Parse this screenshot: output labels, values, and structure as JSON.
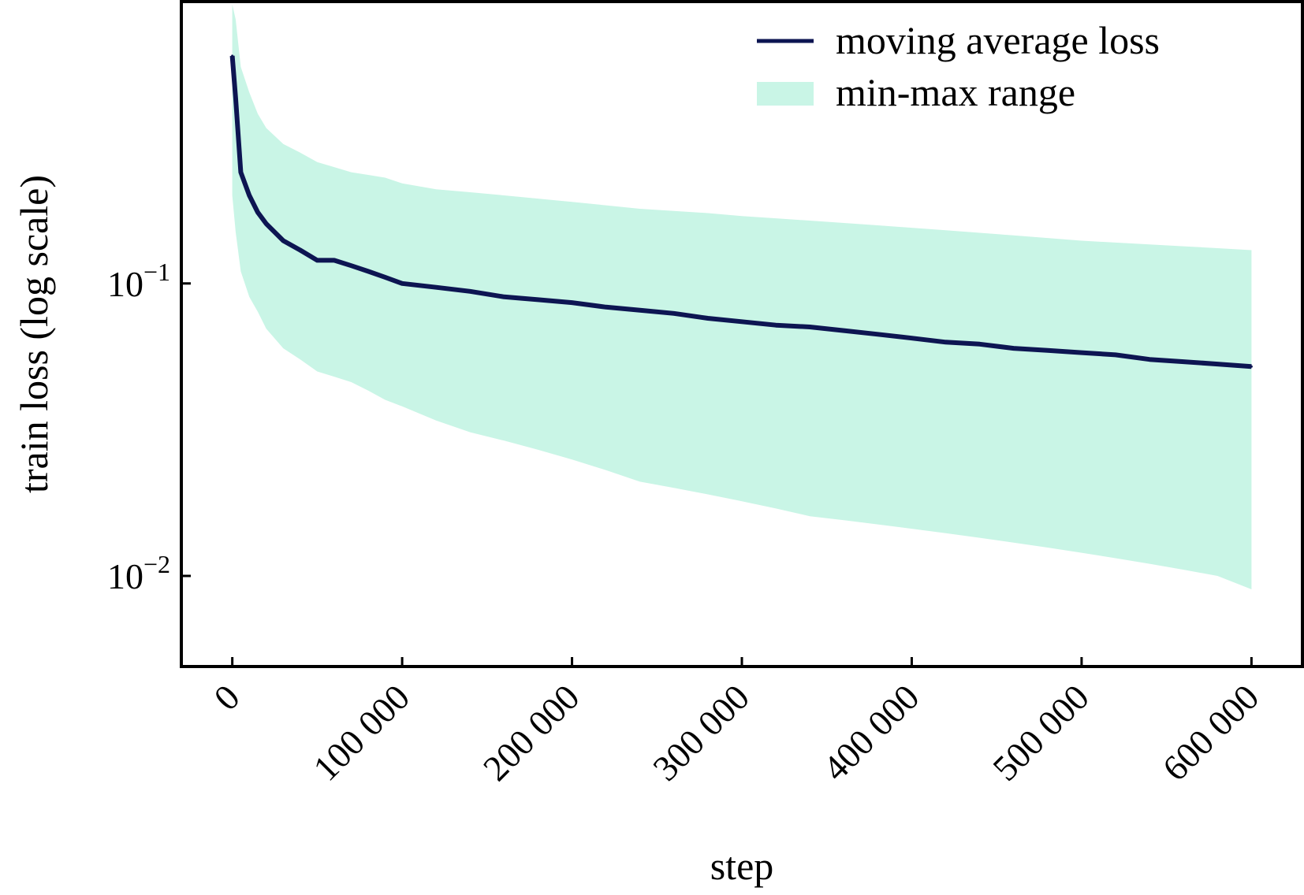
{
  "chart_data": {
    "type": "line",
    "title": "",
    "xlabel": "step",
    "ylabel": "train loss (log scale)",
    "y_scale": "log",
    "xlim": [
      -30000,
      630000
    ],
    "ylim": [
      0.0049,
      0.92
    ],
    "grid": false,
    "legend_position": "top-right",
    "x_ticks": [
      0,
      100000,
      200000,
      300000,
      400000,
      500000,
      600000
    ],
    "x_tick_labels": [
      "0",
      "100 000",
      "200 000",
      "300 000",
      "400 000",
      "500 000",
      "600 000"
    ],
    "y_ticks": [
      0.1,
      0.01
    ],
    "y_tick_labels": [
      {
        "base": "10",
        "exp": "−1"
      },
      {
        "base": "10",
        "exp": "−2"
      }
    ],
    "series": [
      {
        "name": "moving average loss",
        "kind": "line",
        "color": "#0d1552",
        "x": [
          0,
          2000,
          5000,
          10000,
          15000,
          20000,
          30000,
          40000,
          50000,
          60000,
          70000,
          80000,
          90000,
          100000,
          120000,
          140000,
          160000,
          180000,
          200000,
          220000,
          240000,
          260000,
          280000,
          300000,
          320000,
          340000,
          360000,
          380000,
          400000,
          420000,
          440000,
          460000,
          480000,
          500000,
          520000,
          540000,
          560000,
          580000,
          600000
        ],
        "y": [
          0.6,
          0.43,
          0.24,
          0.2,
          0.175,
          0.16,
          0.14,
          0.13,
          0.12,
          0.12,
          0.115,
          0.11,
          0.105,
          0.1,
          0.097,
          0.094,
          0.09,
          0.088,
          0.086,
          0.083,
          0.081,
          0.079,
          0.076,
          0.074,
          0.072,
          0.071,
          0.069,
          0.067,
          0.065,
          0.063,
          0.062,
          0.06,
          0.059,
          0.058,
          0.057,
          0.055,
          0.054,
          0.053,
          0.052
        ]
      },
      {
        "name": "min-max range",
        "kind": "band",
        "color": "#c9f5e6",
        "x": [
          0,
          2000,
          5000,
          10000,
          15000,
          20000,
          30000,
          40000,
          50000,
          60000,
          70000,
          80000,
          90000,
          100000,
          120000,
          140000,
          160000,
          180000,
          200000,
          220000,
          240000,
          260000,
          280000,
          300000,
          320000,
          340000,
          360000,
          380000,
          400000,
          420000,
          440000,
          460000,
          480000,
          500000,
          520000,
          540000,
          560000,
          580000,
          600000
        ],
        "y_min": [
          0.2,
          0.15,
          0.11,
          0.09,
          0.08,
          0.07,
          0.06,
          0.055,
          0.05,
          0.048,
          0.046,
          0.043,
          0.04,
          0.038,
          0.034,
          0.031,
          0.029,
          0.027,
          0.025,
          0.023,
          0.021,
          0.02,
          0.019,
          0.018,
          0.017,
          0.016,
          0.0155,
          0.015,
          0.0145,
          0.014,
          0.0135,
          0.013,
          0.0125,
          0.012,
          0.0115,
          0.011,
          0.0105,
          0.01,
          0.009
        ],
        "y_max": [
          0.9,
          0.8,
          0.55,
          0.45,
          0.38,
          0.34,
          0.3,
          0.28,
          0.26,
          0.25,
          0.24,
          0.235,
          0.23,
          0.22,
          0.21,
          0.205,
          0.2,
          0.195,
          0.19,
          0.185,
          0.18,
          0.177,
          0.174,
          0.17,
          0.167,
          0.164,
          0.161,
          0.158,
          0.155,
          0.152,
          0.149,
          0.146,
          0.143,
          0.14,
          0.138,
          0.136,
          0.134,
          0.132,
          0.13
        ]
      }
    ]
  }
}
